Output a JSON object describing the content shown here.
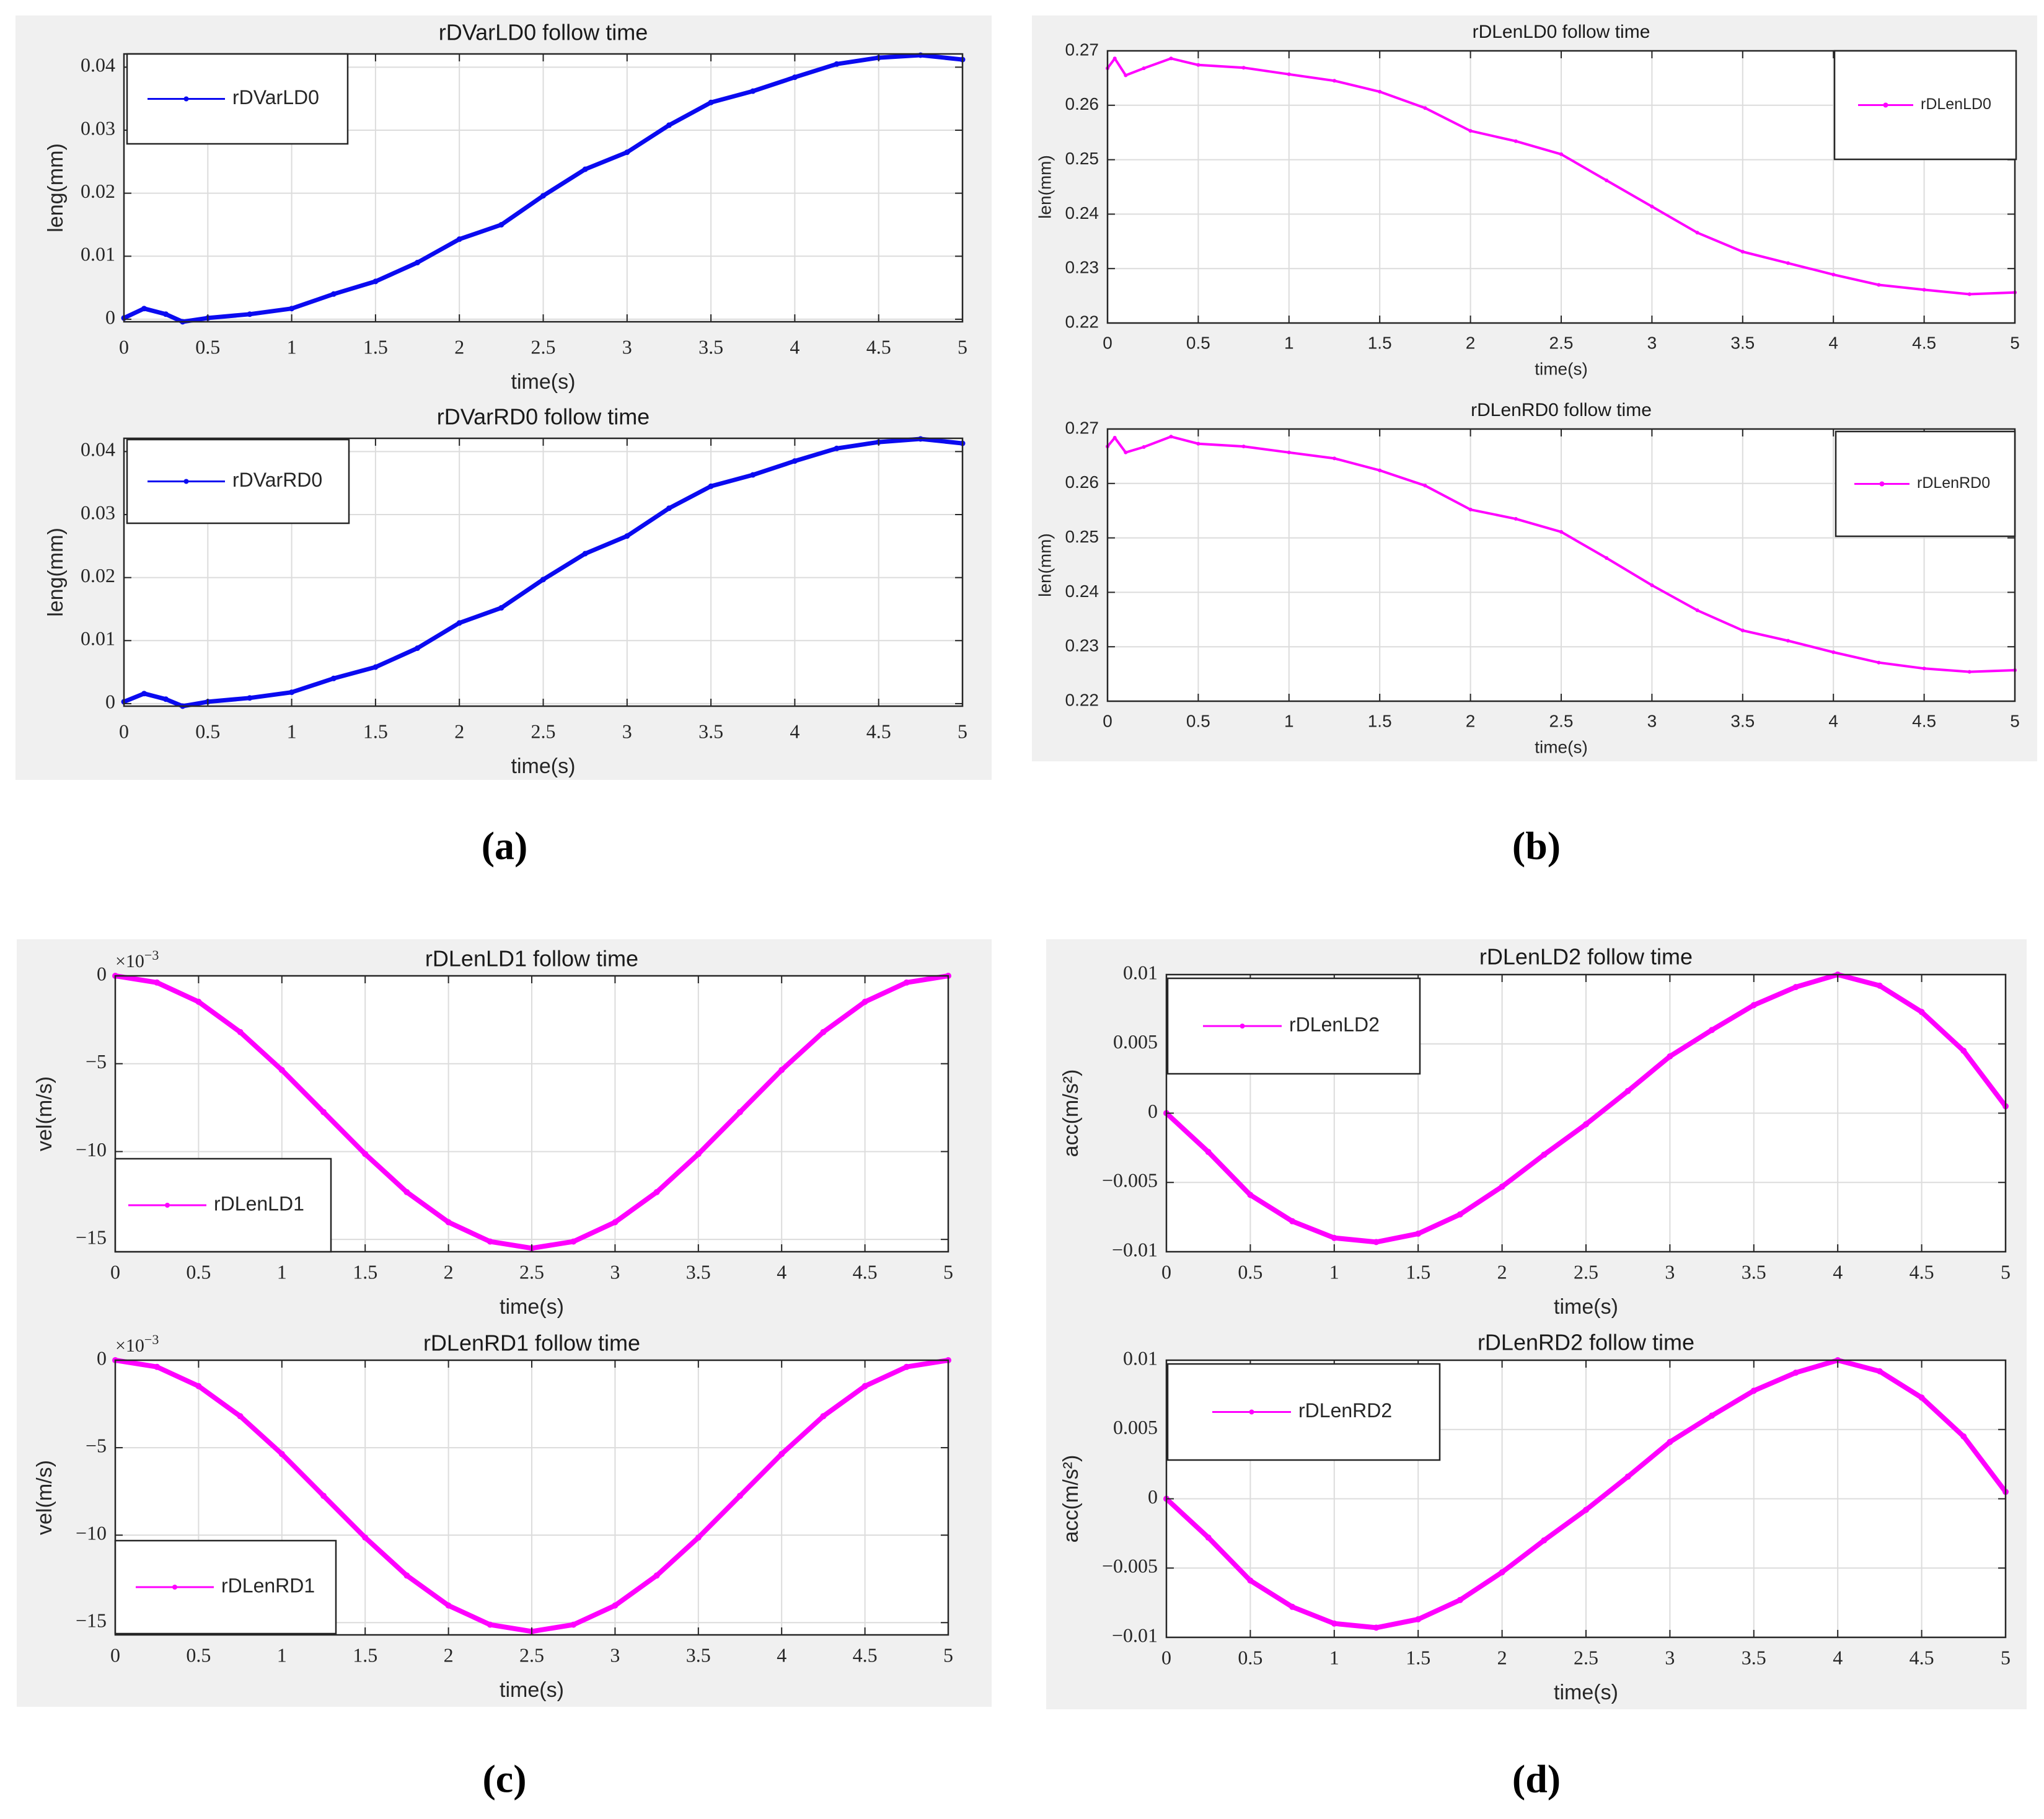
{
  "figure": {
    "captions": [
      "(a)",
      "(b)",
      "(c)",
      "(d)"
    ]
  },
  "chart_data": [
    {
      "type": "line",
      "title": "rDVarLD0 follow time",
      "xlabel": "time(s)",
      "ylabel": "leng(mm)",
      "xlim": [
        0,
        5
      ],
      "ylim": [
        -0.0004,
        0.0421
      ],
      "xticks": [
        0,
        0.5,
        1,
        1.5,
        2,
        2.5,
        3,
        3.5,
        4,
        4.5,
        5
      ],
      "xtick_labels": [
        "0",
        "0.5",
        "1",
        "1.5",
        "2",
        "2.5",
        "3",
        "3.5",
        "4",
        "4.5",
        "5"
      ],
      "yticks": [
        0,
        0.01,
        0.02,
        0.03,
        0.04
      ],
      "ytick_labels": [
        "0",
        "0.01",
        "0.02",
        "0.03",
        "0.04"
      ],
      "grid": true,
      "legend": "top-left",
      "series": [
        {
          "name": "rDVarLD0",
          "color": "#0a0af0",
          "x": [
            0,
            0.12,
            0.25,
            0.35,
            0.5,
            0.75,
            1,
            1.25,
            1.5,
            1.75,
            2,
            2.25,
            2.5,
            2.75,
            3,
            3.25,
            3.5,
            3.75,
            4,
            4.25,
            4.5,
            4.75,
            5
          ],
          "y": [
            0.0002,
            0.0017,
            0.0008,
            -0.0004,
            0.0002,
            0.0008,
            0.0017,
            0.004,
            0.006,
            0.009,
            0.0127,
            0.015,
            0.0196,
            0.0238,
            0.0265,
            0.0308,
            0.0344,
            0.0362,
            0.0384,
            0.0405,
            0.0415,
            0.0419,
            0.0412
          ]
        }
      ]
    },
    {
      "type": "line",
      "title": "rDVarRD0 follow time",
      "xlabel": "time(s)",
      "ylabel": "leng(mm)",
      "xlim": [
        0,
        5
      ],
      "ylim": [
        -0.0004,
        0.0421
      ],
      "xticks": [
        0,
        0.5,
        1,
        1.5,
        2,
        2.5,
        3,
        3.5,
        4,
        4.5,
        5
      ],
      "xtick_labels": [
        "0",
        "0.5",
        "1",
        "1.5",
        "2",
        "2.5",
        "3",
        "3.5",
        "4",
        "4.5",
        "5"
      ],
      "yticks": [
        0,
        0.01,
        0.02,
        0.03,
        0.04
      ],
      "ytick_labels": [
        "0",
        "0.01",
        "0.02",
        "0.03",
        "0.04"
      ],
      "grid": true,
      "legend": "top-left",
      "series": [
        {
          "name": "rDVarRD0",
          "color": "#0a0af0",
          "x": [
            0,
            0.12,
            0.25,
            0.35,
            0.5,
            0.75,
            1,
            1.25,
            1.5,
            1.75,
            2,
            2.25,
            2.5,
            2.75,
            3,
            3.25,
            3.5,
            3.75,
            4,
            4.25,
            4.5,
            4.75,
            5
          ],
          "y": [
            0.0003,
            0.0016,
            0.0007,
            -0.0004,
            0.0003,
            0.0009,
            0.0018,
            0.004,
            0.0058,
            0.0088,
            0.0128,
            0.0152,
            0.0197,
            0.0238,
            0.0266,
            0.031,
            0.0345,
            0.0363,
            0.0385,
            0.0405,
            0.0415,
            0.042,
            0.0413
          ]
        }
      ]
    },
    {
      "type": "line",
      "title": "rDLenLD0 follow time",
      "xlabel": "time(s)",
      "ylabel": "len(mm)",
      "xlim": [
        0,
        5
      ],
      "ylim": [
        0.22,
        0.27
      ],
      "xticks": [
        0,
        0.5,
        1,
        1.5,
        2,
        2.5,
        3,
        3.5,
        4,
        4.5,
        5
      ],
      "xtick_labels": [
        "0",
        "0.5",
        "1",
        "1.5",
        "2",
        "2.5",
        "3",
        "3.5",
        "4",
        "4.5",
        "5"
      ],
      "yticks": [
        0.22,
        0.23,
        0.24,
        0.25,
        0.26,
        0.27
      ],
      "ytick_labels": [
        "0.22",
        "0.23",
        "0.24",
        "0.25",
        "0.26",
        "0.27"
      ],
      "grid": true,
      "legend": "top-right",
      "series": [
        {
          "name": "rDLenLD0",
          "color": "#ff00ff",
          "x": [
            0,
            0.04,
            0.1,
            0.2,
            0.35,
            0.5,
            0.75,
            1,
            1.25,
            1.5,
            1.75,
            2,
            2.25,
            2.5,
            2.75,
            3,
            3.25,
            3.5,
            3.75,
            4,
            4.25,
            4.5,
            4.75,
            5
          ],
          "y": [
            0.2668,
            0.2686,
            0.2655,
            0.2668,
            0.2686,
            0.2674,
            0.2669,
            0.2657,
            0.2645,
            0.2625,
            0.2595,
            0.2553,
            0.2534,
            0.251,
            0.2462,
            0.2414,
            0.2366,
            0.2331,
            0.231,
            0.2289,
            0.227,
            0.2261,
            0.2253,
            0.2256
          ]
        }
      ]
    },
    {
      "type": "line",
      "title": "rDLenRD0 follow time",
      "xlabel": "time(s)",
      "ylabel": "len(mm)",
      "xlim": [
        0,
        5
      ],
      "ylim": [
        0.22,
        0.27
      ],
      "xticks": [
        0,
        0.5,
        1,
        1.5,
        2,
        2.5,
        3,
        3.5,
        4,
        4.5,
        5
      ],
      "xtick_labels": [
        "0",
        "0.5",
        "1",
        "1.5",
        "2",
        "2.5",
        "3",
        "3.5",
        "4",
        "4.5",
        "5"
      ],
      "yticks": [
        0.22,
        0.23,
        0.24,
        0.25,
        0.26,
        0.27
      ],
      "ytick_labels": [
        "0.22",
        "0.23",
        "0.24",
        "0.25",
        "0.26",
        "0.27"
      ],
      "grid": true,
      "legend": "top-right",
      "series": [
        {
          "name": "rDLenRD0",
          "color": "#ff00ff",
          "x": [
            0,
            0.04,
            0.1,
            0.2,
            0.35,
            0.5,
            0.75,
            1,
            1.25,
            1.5,
            1.75,
            2,
            2.25,
            2.5,
            2.75,
            3,
            3.25,
            3.5,
            3.75,
            4,
            4.25,
            4.5,
            4.75,
            5
          ],
          "y": [
            0.2668,
            0.2684,
            0.2657,
            0.2667,
            0.2686,
            0.2673,
            0.2668,
            0.2657,
            0.2646,
            0.2624,
            0.2596,
            0.2552,
            0.2535,
            0.2511,
            0.2463,
            0.2413,
            0.2367,
            0.233,
            0.2311,
            0.229,
            0.2271,
            0.226,
            0.2254,
            0.2257
          ]
        }
      ]
    },
    {
      "type": "line",
      "title": "rDLenLD1 follow time",
      "xlabel": "time(s)",
      "ylabel": "vel(m/s)",
      "y_multiplier_base": "×10",
      "y_multiplier_exponent": "−3",
      "xlim": [
        0,
        5
      ],
      "ylim": [
        -15.7,
        0
      ],
      "xticks": [
        0,
        0.5,
        1,
        1.5,
        2,
        2.5,
        3,
        3.5,
        4,
        4.5,
        5
      ],
      "xtick_labels": [
        "0",
        "0.5",
        "1",
        "1.5",
        "2",
        "2.5",
        "3",
        "3.5",
        "4",
        "4.5",
        "5"
      ],
      "yticks": [
        -15,
        -10,
        -5,
        0
      ],
      "ytick_labels": [
        "−15",
        "−10",
        "−5",
        "0"
      ],
      "grid": true,
      "legend": "bottom-left",
      "series": [
        {
          "name": "rDLenLD1",
          "color": "#ff00ff",
          "x": [
            0,
            0.25,
            0.5,
            0.75,
            1,
            1.25,
            1.5,
            1.75,
            2,
            2.25,
            2.5,
            2.75,
            3,
            3.25,
            3.5,
            3.75,
            4,
            4.25,
            4.5,
            4.75,
            5
          ],
          "y": [
            0,
            -0.38,
            -1.48,
            -3.2,
            -5.36,
            -7.75,
            -10.14,
            -12.31,
            -14.02,
            -15.12,
            -15.5,
            -15.12,
            -14.02,
            -12.31,
            -10.14,
            -7.75,
            -5.36,
            -3.2,
            -1.48,
            -0.38,
            0
          ]
        }
      ]
    },
    {
      "type": "line",
      "title": "rDLenRD1 follow time",
      "xlabel": "time(s)",
      "ylabel": "vel(m/s)",
      "y_multiplier_base": "×10",
      "y_multiplier_exponent": "−3",
      "xlim": [
        0,
        5
      ],
      "ylim": [
        -15.7,
        0
      ],
      "xticks": [
        0,
        0.5,
        1,
        1.5,
        2,
        2.5,
        3,
        3.5,
        4,
        4.5,
        5
      ],
      "xtick_labels": [
        "0",
        "0.5",
        "1",
        "1.5",
        "2",
        "2.5",
        "3",
        "3.5",
        "4",
        "4.5",
        "5"
      ],
      "yticks": [
        -15,
        -10,
        -5,
        0
      ],
      "ytick_labels": [
        "−15",
        "−10",
        "−5",
        "0"
      ],
      "grid": true,
      "legend": "bottom-left",
      "series": [
        {
          "name": "rDLenRD1",
          "color": "#ff00ff",
          "x": [
            0,
            0.25,
            0.5,
            0.75,
            1,
            1.25,
            1.5,
            1.75,
            2,
            2.25,
            2.5,
            2.75,
            3,
            3.25,
            3.5,
            3.75,
            4,
            4.25,
            4.5,
            4.75,
            5
          ],
          "y": [
            0,
            -0.38,
            -1.48,
            -3.2,
            -5.36,
            -7.75,
            -10.14,
            -12.31,
            -14.02,
            -15.12,
            -15.5,
            -15.12,
            -14.02,
            -12.31,
            -10.14,
            -7.75,
            -5.36,
            -3.2,
            -1.48,
            -0.38,
            0
          ]
        }
      ]
    },
    {
      "type": "line",
      "title": "rDLenLD2 follow time",
      "xlabel": "time(s)",
      "ylabel": "acc(m/s²)",
      "xlim": [
        0,
        5
      ],
      "ylim": [
        -0.01,
        0.01
      ],
      "xticks": [
        0,
        0.5,
        1,
        1.5,
        2,
        2.5,
        3,
        3.5,
        4,
        4.5,
        5
      ],
      "xtick_labels": [
        "0",
        "0.5",
        "1",
        "1.5",
        "2",
        "2.5",
        "3",
        "3.5",
        "4",
        "4.5",
        "5"
      ],
      "yticks": [
        -0.01,
        -0.005,
        0,
        0.005,
        0.01
      ],
      "ytick_labels": [
        "−0.01",
        "−0.005",
        "0",
        "0.005",
        "0.01"
      ],
      "grid": true,
      "legend": "top-left",
      "series": [
        {
          "name": "rDLenLD2",
          "color": "#ff00ff",
          "x": [
            0,
            0.25,
            0.5,
            0.75,
            1,
            1.25,
            1.5,
            1.75,
            2,
            2.25,
            2.5,
            2.75,
            3,
            3.25,
            3.5,
            3.75,
            4,
            4.25,
            4.5,
            4.75,
            5
          ],
          "y": [
            0,
            -0.0028,
            -0.0059,
            -0.0078,
            -0.009,
            -0.0093,
            -0.0087,
            -0.0073,
            -0.0053,
            -0.003,
            -0.0008,
            0.0016,
            0.0041,
            0.006,
            0.0078,
            0.0091,
            0.01,
            0.0092,
            0.0073,
            0.0045,
            0.0005
          ]
        }
      ]
    },
    {
      "type": "line",
      "title": "rDLenRD2 follow time",
      "xlabel": "time(s)",
      "ylabel": "acc(m/s²)",
      "xlim": [
        0,
        5
      ],
      "ylim": [
        -0.01,
        0.01
      ],
      "xticks": [
        0,
        0.5,
        1,
        1.5,
        2,
        2.5,
        3,
        3.5,
        4,
        4.5,
        5
      ],
      "xtick_labels": [
        "0",
        "0.5",
        "1",
        "1.5",
        "2",
        "2.5",
        "3",
        "3.5",
        "4",
        "4.5",
        "5"
      ],
      "yticks": [
        -0.01,
        -0.005,
        0,
        0.005,
        0.01
      ],
      "ytick_labels": [
        "−0.01",
        "−0.005",
        "0",
        "0.005",
        "0.01"
      ],
      "grid": true,
      "legend": "top-left",
      "series": [
        {
          "name": "rDLenRD2",
          "color": "#ff00ff",
          "x": [
            0,
            0.25,
            0.5,
            0.75,
            1,
            1.25,
            1.5,
            1.75,
            2,
            2.25,
            2.5,
            2.75,
            3,
            3.25,
            3.5,
            3.75,
            4,
            4.25,
            4.5,
            4.75,
            5
          ],
          "y": [
            0,
            -0.0028,
            -0.0059,
            -0.0078,
            -0.009,
            -0.0093,
            -0.0087,
            -0.0073,
            -0.0053,
            -0.003,
            -0.0008,
            0.0016,
            0.0041,
            0.006,
            0.0078,
            0.0091,
            0.01,
            0.0092,
            0.0073,
            0.0045,
            0.0005
          ]
        }
      ]
    }
  ]
}
